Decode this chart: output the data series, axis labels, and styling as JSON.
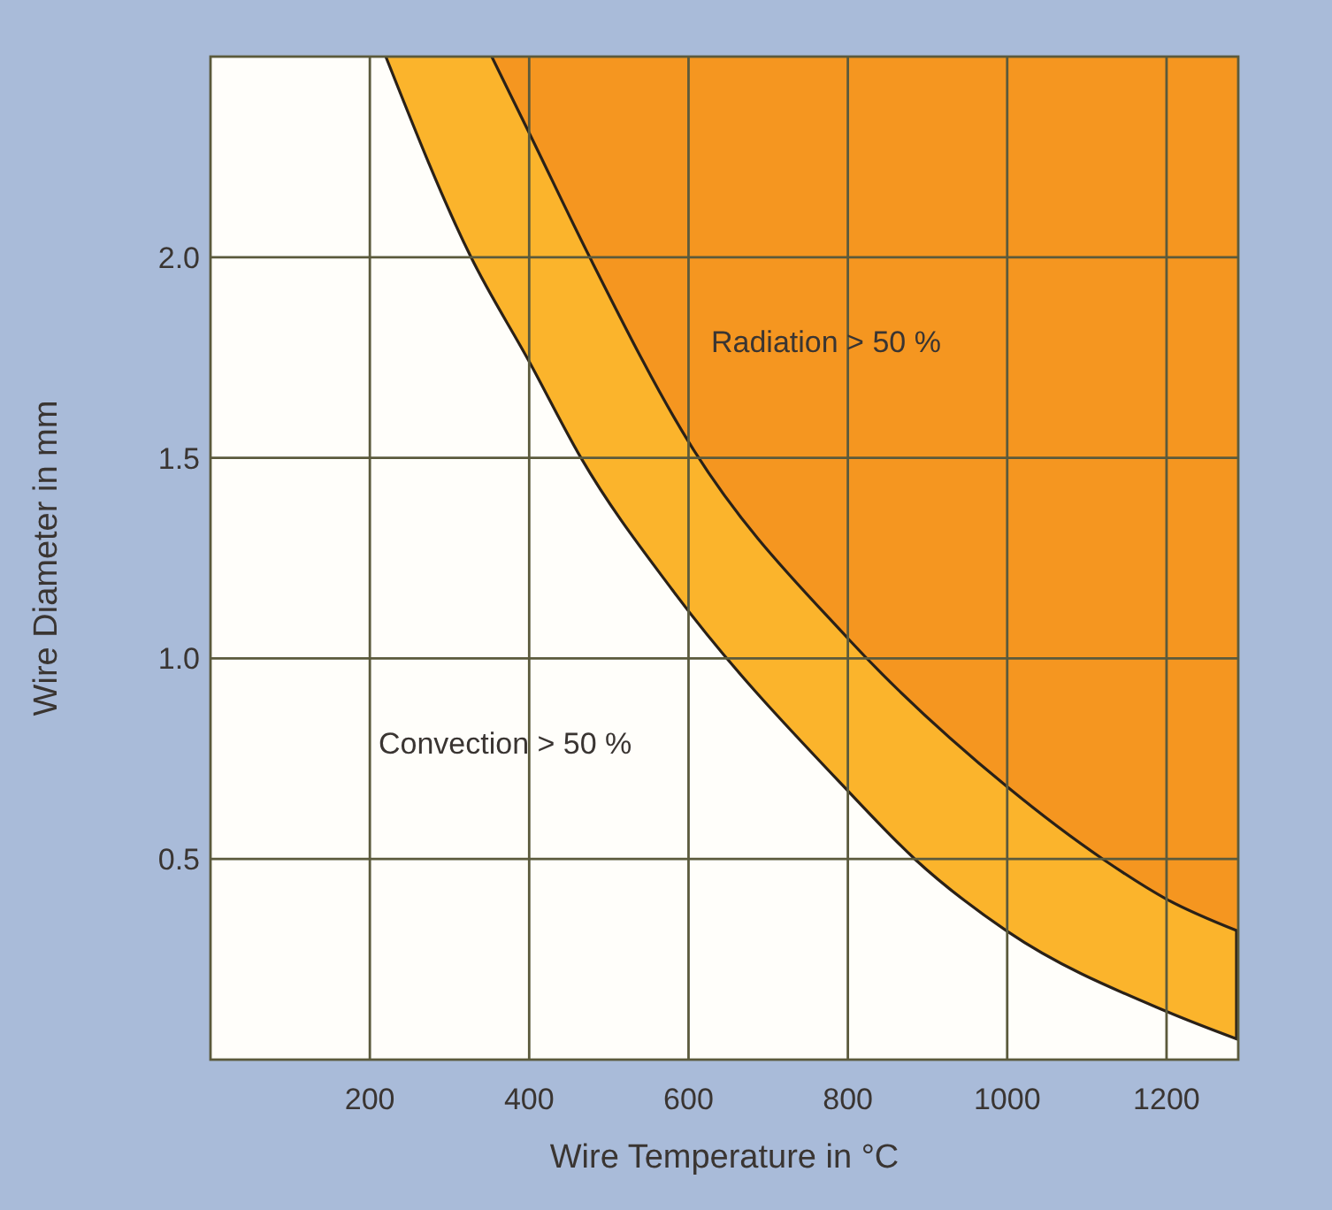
{
  "chart_data": {
    "type": "line",
    "xlabel": "Wire Temperature in °C",
    "ylabel": "Wire Diameter in mm",
    "xlim": [
      0,
      1290
    ],
    "ylim": [
      0,
      2.5
    ],
    "xticks": [
      200,
      400,
      600,
      800,
      1000,
      1200
    ],
    "yticks": [
      0.5,
      {
        "value": 1,
        "label": "1.0"
      },
      1.5,
      {
        "value": 2,
        "label": "2.0"
      }
    ],
    "grid": true,
    "series": [
      {
        "color": "#2a2118",
        "x": [
          220,
          327,
          400,
          465,
          580,
          800,
          884,
          1000,
          1200,
          1290
        ],
        "values": [
          2.5,
          2.0,
          1.74,
          1.5,
          1.17,
          0.67,
          0.5,
          0.32,
          0.12,
          0.05
        ]
      },
      {
        "color": "#2a2118",
        "x": [
          353,
          400,
          476,
          600,
          800,
          1000,
          1120,
          1200,
          1290
        ],
        "values": [
          2.5,
          2.31,
          2.0,
          1.54,
          1.05,
          0.68,
          0.5,
          0.4,
          0.32
        ]
      }
    ],
    "annotations": [
      "Radiation > 50 %",
      "Convection > 50 %"
    ]
  }
}
